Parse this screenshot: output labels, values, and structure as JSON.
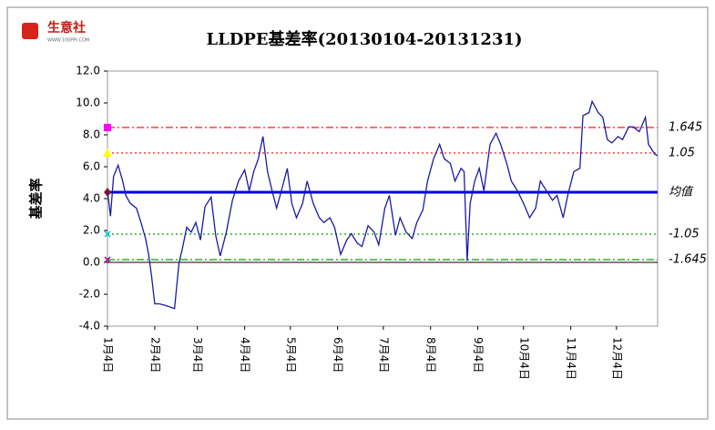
{
  "logo": {
    "name": "生意社",
    "site": "WWW.100PPI.COM"
  },
  "chart_data": {
    "type": "line",
    "title": "LLDPE基差率(20130104-20131231)",
    "y_label": "基差率",
    "xlim": [
      4,
      365
    ],
    "xticks": [
      {
        "value": 4,
        "label": "1月4日"
      },
      {
        "value": 35,
        "label": "2月4日"
      },
      {
        "value": 63,
        "label": "3月4日"
      },
      {
        "value": 94,
        "label": "4月4日"
      },
      {
        "value": 124,
        "label": "5月4日"
      },
      {
        "value": 155,
        "label": "6月4日"
      },
      {
        "value": 185,
        "label": "7月4日"
      },
      {
        "value": 216,
        "label": "8月4日"
      },
      {
        "value": 247,
        "label": "9月4日"
      },
      {
        "value": 277,
        "label": "10月4日"
      },
      {
        "value": 308,
        "label": "11月4日"
      },
      {
        "value": 338,
        "label": "12月4日"
      }
    ],
    "ylim": [
      -4,
      12
    ],
    "yticks": [
      {
        "value": 12,
        "label": "12.0"
      },
      {
        "value": 10,
        "label": "10.0"
      },
      {
        "value": 8,
        "label": "8.0"
      },
      {
        "value": 6,
        "label": "6.0"
      },
      {
        "value": 4,
        "label": "4.0"
      },
      {
        "value": 2,
        "label": "2.0"
      },
      {
        "value": 0,
        "label": "0.0"
      },
      {
        "value": -2,
        "label": "-2.0"
      },
      {
        "value": -4,
        "label": "-4.0"
      }
    ],
    "series": [
      {
        "color": "#1a1aa6",
        "x": [
          4,
          6,
          8,
          11,
          14,
          16,
          19,
          23,
          26,
          29,
          31,
          33,
          35,
          38,
          42,
          48,
          51,
          53,
          56,
          59,
          62,
          65,
          68,
          72,
          75,
          78,
          82,
          86,
          90,
          94,
          97,
          100,
          103,
          106,
          109,
          112,
          115,
          119,
          122,
          125,
          128,
          132,
          135,
          139,
          143,
          146,
          150,
          153,
          157,
          161,
          164,
          168,
          171,
          175,
          179,
          182,
          186,
          189,
          193,
          196,
          200,
          204,
          207,
          211,
          214,
          218,
          222,
          225,
          229,
          232,
          236,
          238,
          240,
          242,
          245,
          248,
          251,
          255,
          259,
          262,
          266,
          269,
          273,
          277,
          281,
          285,
          288,
          292,
          296,
          299,
          303,
          306,
          310,
          314,
          316,
          320,
          322,
          326,
          329,
          332,
          335,
          339,
          342,
          346,
          349,
          353,
          357,
          359,
          363,
          365
        ],
        "values": [
          4.5,
          2.9,
          5.4,
          6.1,
          5.1,
          4.2,
          3.7,
          3.4,
          2.5,
          1.5,
          0.5,
          -0.9,
          -2.6,
          -2.6,
          -2.7,
          -2.9,
          0,
          0.8,
          2.2,
          1.9,
          2.5,
          1.4,
          3.5,
          4.1,
          1.7,
          0.4,
          1.9,
          3.9,
          5.1,
          5.8,
          4.5,
          5.7,
          6.5,
          7.9,
          5.7,
          4.5,
          3.4,
          4.8,
          5.9,
          3.7,
          2.8,
          3.7,
          5.1,
          3.7,
          2.8,
          2.5,
          2.8,
          2.2,
          0.5,
          1.4,
          1.8,
          1.2,
          1.0,
          2.3,
          1.9,
          1.1,
          3.4,
          4.2,
          1.7,
          2.8,
          1.9,
          1.5,
          2.5,
          3.3,
          5.1,
          6.5,
          7.4,
          6.5,
          6.2,
          5.1,
          5.9,
          5.7,
          0.1,
          3.7,
          5.1,
          5.9,
          4.5,
          7.4,
          8.1,
          7.4,
          6.2,
          5.1,
          4.5,
          3.7,
          2.8,
          3.4,
          5.1,
          4.5,
          3.9,
          4.2,
          2.8,
          4.2,
          5.7,
          5.9,
          9.2,
          9.4,
          10.1,
          9.4,
          9.1,
          7.7,
          7.5,
          7.9,
          7.7,
          8.5,
          8.5,
          8.2,
          9.1,
          7.4,
          6.8,
          6.7
        ]
      }
    ],
    "reference_lines": [
      {
        "value": 8.46,
        "label": "1.645",
        "color": "#ff0000",
        "style": "dashdot",
        "marker": "square",
        "marker_color": "#ff00ff"
      },
      {
        "value": 6.86,
        "label": "1.05",
        "color": "#ff0000",
        "style": "dot",
        "marker": "triangle",
        "marker_color": "#ffff00"
      },
      {
        "value": 4.4,
        "label": "均值",
        "color": "#0000dd",
        "style": "solid",
        "marker": "diamond",
        "marker_color": "#8b1a1a"
      },
      {
        "value": 1.77,
        "label": "-1.05",
        "color": "#00a000",
        "style": "dot",
        "marker": "cross",
        "marker_color": "#00cccc"
      },
      {
        "value": 0.17,
        "label": "-1.645",
        "color": "#00a000",
        "style": "dashdot",
        "marker": "cross",
        "marker_color": "#aa00aa"
      }
    ]
  }
}
